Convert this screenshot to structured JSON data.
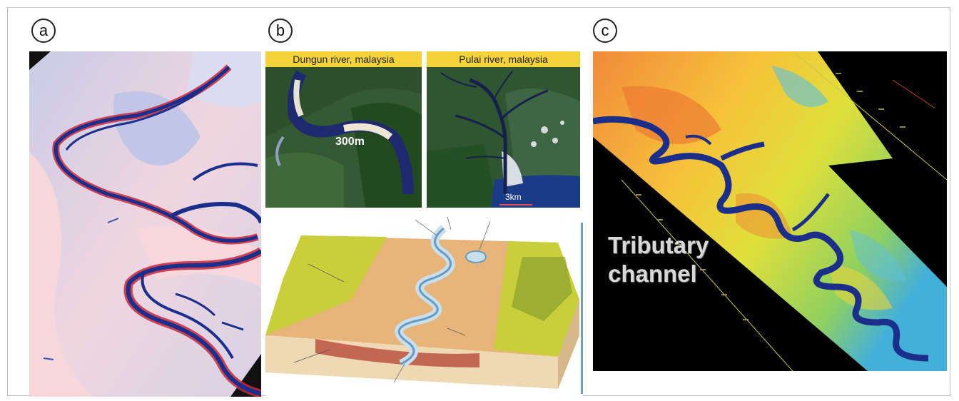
{
  "panels": {
    "a": {
      "label": "a"
    },
    "b": {
      "label": "b",
      "map1_title": "Dungun river, malaysia",
      "map1_scale": "300m",
      "map2_title": "Pulai river, malaysia",
      "map2_scale": "3km"
    },
    "c": {
      "label": "c",
      "annotation_line1": "Tributary",
      "annotation_line2": "channel"
    }
  },
  "colors": {
    "channel_blue": "#1a2f8c",
    "channel_red": "#c8283c",
    "seismic_bg_pink": "#f6d8dc",
    "seismic_bg_lilac": "#c9cbe8",
    "caption_yellow": "#f3d23a",
    "floodplain_green": "#c8cf3a",
    "floodplain_tan": "#e7b47a",
    "c_background": "#000000"
  },
  "icons": {
    "label_badge": "circle-letter-icon"
  }
}
